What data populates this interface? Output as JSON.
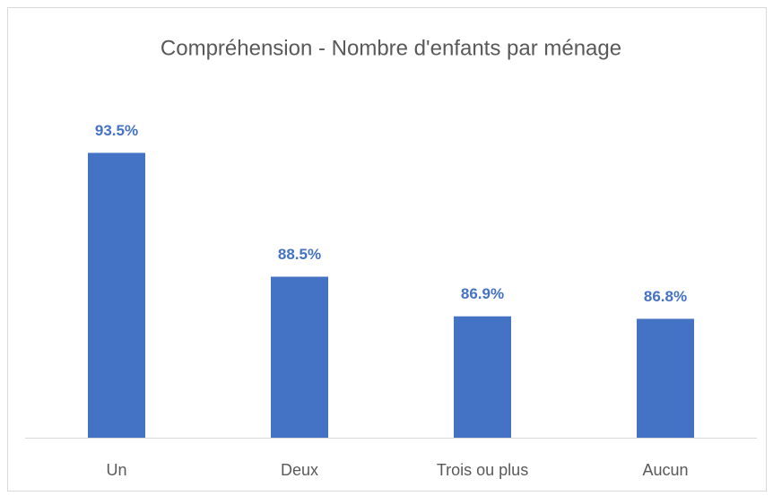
{
  "chart_data": {
    "type": "bar",
    "title": "Compréhension - Nombre d'enfants par ménage",
    "categories": [
      "Un",
      "Deux",
      "Trois ou plus",
      "Aucun"
    ],
    "values": [
      93.5,
      88.5,
      86.9,
      86.8
    ],
    "value_labels": [
      "93.5%",
      "88.5%",
      "86.9%",
      "86.8%"
    ],
    "color": "#4472c4",
    "ylim": [
      82,
      95
    ]
  }
}
